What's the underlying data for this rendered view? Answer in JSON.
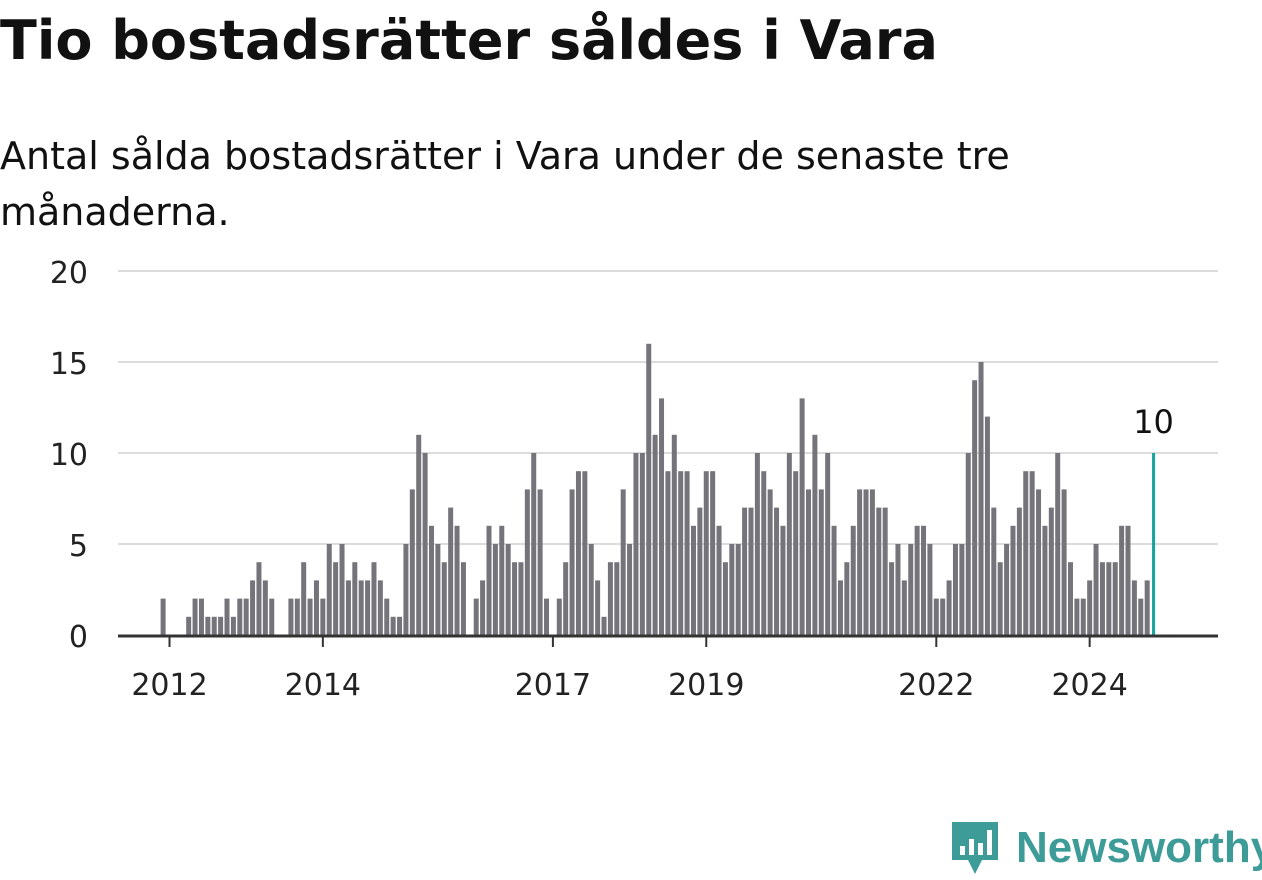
{
  "title": "Tio bostadsrätter såldes i Vara",
  "subtitle": "Antal sålda bostadsrätter i Vara under de senaste tre månaderna.",
  "logo": {
    "text": "Newsworthy",
    "icon": "newsworthy-logo-icon"
  },
  "colors": {
    "bar": "#75747a",
    "highlight": "#16a39c",
    "grid": "#dcdcdc",
    "axis": "#333333",
    "text": "#222222",
    "brand": "#3d9c97"
  },
  "chart_data": {
    "type": "bar",
    "title": "Tio bostadsrätter såldes i Vara",
    "subtitle": "Antal sålda bostadsrätter i Vara under de senaste tre månaderna.",
    "xlabel": "",
    "ylabel": "",
    "ylim": [
      0,
      20
    ],
    "yticks": [
      0,
      5,
      10,
      15,
      20
    ],
    "grid": true,
    "x_range": [
      "2011-06",
      "2025-06"
    ],
    "x_ticks": [
      {
        "label": "2012",
        "date": "2012-01"
      },
      {
        "label": "2014",
        "date": "2014-01"
      },
      {
        "label": "2017",
        "date": "2017-01"
      },
      {
        "label": "2019",
        "date": "2019-01"
      },
      {
        "label": "2022",
        "date": "2022-01"
      },
      {
        "label": "2024",
        "date": "2024-01"
      }
    ],
    "highlight_label": "10",
    "series": [
      {
        "points": [
          [
            "2011-12",
            2
          ],
          [
            "2012-01",
            0
          ],
          [
            "2012-02",
            0
          ],
          [
            "2012-03",
            0
          ],
          [
            "2012-04",
            1
          ],
          [
            "2012-05",
            2
          ],
          [
            "2012-06",
            2
          ],
          [
            "2012-07",
            1
          ],
          [
            "2012-08",
            1
          ],
          [
            "2012-09",
            1
          ],
          [
            "2012-10",
            2
          ],
          [
            "2012-11",
            1
          ],
          [
            "2012-12",
            2
          ],
          [
            "2013-01",
            2
          ],
          [
            "2013-02",
            3
          ],
          [
            "2013-03",
            4
          ],
          [
            "2013-04",
            3
          ],
          [
            "2013-05",
            2
          ],
          [
            "2013-06",
            0
          ],
          [
            "2013-07",
            0
          ],
          [
            "2013-08",
            2
          ],
          [
            "2013-09",
            2
          ],
          [
            "2013-10",
            4
          ],
          [
            "2013-11",
            2
          ],
          [
            "2013-12",
            3
          ],
          [
            "2014-01",
            2
          ],
          [
            "2014-02",
            5
          ],
          [
            "2014-03",
            4
          ],
          [
            "2014-04",
            5
          ],
          [
            "2014-05",
            3
          ],
          [
            "2014-06",
            4
          ],
          [
            "2014-07",
            3
          ],
          [
            "2014-08",
            3
          ],
          [
            "2014-09",
            4
          ],
          [
            "2014-10",
            3
          ],
          [
            "2014-11",
            2
          ],
          [
            "2014-12",
            1
          ],
          [
            "2015-01",
            1
          ],
          [
            "2015-02",
            5
          ],
          [
            "2015-03",
            8
          ],
          [
            "2015-04",
            11
          ],
          [
            "2015-05",
            10
          ],
          [
            "2015-06",
            6
          ],
          [
            "2015-07",
            5
          ],
          [
            "2015-08",
            4
          ],
          [
            "2015-09",
            7
          ],
          [
            "2015-10",
            6
          ],
          [
            "2015-11",
            4
          ],
          [
            "2015-12",
            0
          ],
          [
            "2016-01",
            2
          ],
          [
            "2016-02",
            3
          ],
          [
            "2016-03",
            6
          ],
          [
            "2016-04",
            5
          ],
          [
            "2016-05",
            6
          ],
          [
            "2016-06",
            5
          ],
          [
            "2016-07",
            4
          ],
          [
            "2016-08",
            4
          ],
          [
            "2016-09",
            8
          ],
          [
            "2016-10",
            10
          ],
          [
            "2016-11",
            8
          ],
          [
            "2016-12",
            2
          ],
          [
            "2017-01",
            0
          ],
          [
            "2017-02",
            2
          ],
          [
            "2017-03",
            4
          ],
          [
            "2017-04",
            8
          ],
          [
            "2017-05",
            9
          ],
          [
            "2017-06",
            9
          ],
          [
            "2017-07",
            5
          ],
          [
            "2017-08",
            3
          ],
          [
            "2017-09",
            1
          ],
          [
            "2017-10",
            4
          ],
          [
            "2017-11",
            4
          ],
          [
            "2017-12",
            8
          ],
          [
            "2018-01",
            5
          ],
          [
            "2018-02",
            10
          ],
          [
            "2018-03",
            10
          ],
          [
            "2018-04",
            16
          ],
          [
            "2018-05",
            11
          ],
          [
            "2018-06",
            13
          ],
          [
            "2018-07",
            9
          ],
          [
            "2018-08",
            11
          ],
          [
            "2018-09",
            9
          ],
          [
            "2018-10",
            9
          ],
          [
            "2018-11",
            6
          ],
          [
            "2018-12",
            7
          ],
          [
            "2019-01",
            9
          ],
          [
            "2019-02",
            9
          ],
          [
            "2019-03",
            6
          ],
          [
            "2019-04",
            4
          ],
          [
            "2019-05",
            5
          ],
          [
            "2019-06",
            5
          ],
          [
            "2019-07",
            7
          ],
          [
            "2019-08",
            7
          ],
          [
            "2019-09",
            10
          ],
          [
            "2019-10",
            9
          ],
          [
            "2019-11",
            8
          ],
          [
            "2019-12",
            7
          ],
          [
            "2020-01",
            6
          ],
          [
            "2020-02",
            10
          ],
          [
            "2020-03",
            9
          ],
          [
            "2020-04",
            13
          ],
          [
            "2020-05",
            8
          ],
          [
            "2020-06",
            11
          ],
          [
            "2020-07",
            8
          ],
          [
            "2020-08",
            10
          ],
          [
            "2020-09",
            6
          ],
          [
            "2020-10",
            3
          ],
          [
            "2020-11",
            4
          ],
          [
            "2020-12",
            6
          ],
          [
            "2021-01",
            8
          ],
          [
            "2021-02",
            8
          ],
          [
            "2021-03",
            8
          ],
          [
            "2021-04",
            7
          ],
          [
            "2021-05",
            7
          ],
          [
            "2021-06",
            4
          ],
          [
            "2021-07",
            5
          ],
          [
            "2021-08",
            3
          ],
          [
            "2021-09",
            5
          ],
          [
            "2021-10",
            6
          ],
          [
            "2021-11",
            6
          ],
          [
            "2021-12",
            5
          ],
          [
            "2022-01",
            2
          ],
          [
            "2022-02",
            2
          ],
          [
            "2022-03",
            3
          ],
          [
            "2022-04",
            5
          ],
          [
            "2022-05",
            5
          ],
          [
            "2022-06",
            10
          ],
          [
            "2022-07",
            14
          ],
          [
            "2022-08",
            15
          ],
          [
            "2022-09",
            12
          ],
          [
            "2022-10",
            7
          ],
          [
            "2022-11",
            4
          ],
          [
            "2022-12",
            5
          ],
          [
            "2023-01",
            6
          ],
          [
            "2023-02",
            7
          ],
          [
            "2023-03",
            9
          ],
          [
            "2023-04",
            9
          ],
          [
            "2023-05",
            8
          ],
          [
            "2023-06",
            6
          ],
          [
            "2023-07",
            7
          ],
          [
            "2023-08",
            10
          ],
          [
            "2023-09",
            8
          ],
          [
            "2023-10",
            4
          ],
          [
            "2023-11",
            2
          ],
          [
            "2023-12",
            2
          ],
          [
            "2024-01",
            3
          ],
          [
            "2024-02",
            5
          ],
          [
            "2024-03",
            4
          ],
          [
            "2024-04",
            4
          ],
          [
            "2024-05",
            4
          ],
          [
            "2024-06",
            6
          ],
          [
            "2024-07",
            6
          ],
          [
            "2024-08",
            3
          ],
          [
            "2024-09",
            2
          ],
          [
            "2024-10",
            3
          ],
          [
            "2024-11",
            10
          ]
        ]
      }
    ]
  }
}
